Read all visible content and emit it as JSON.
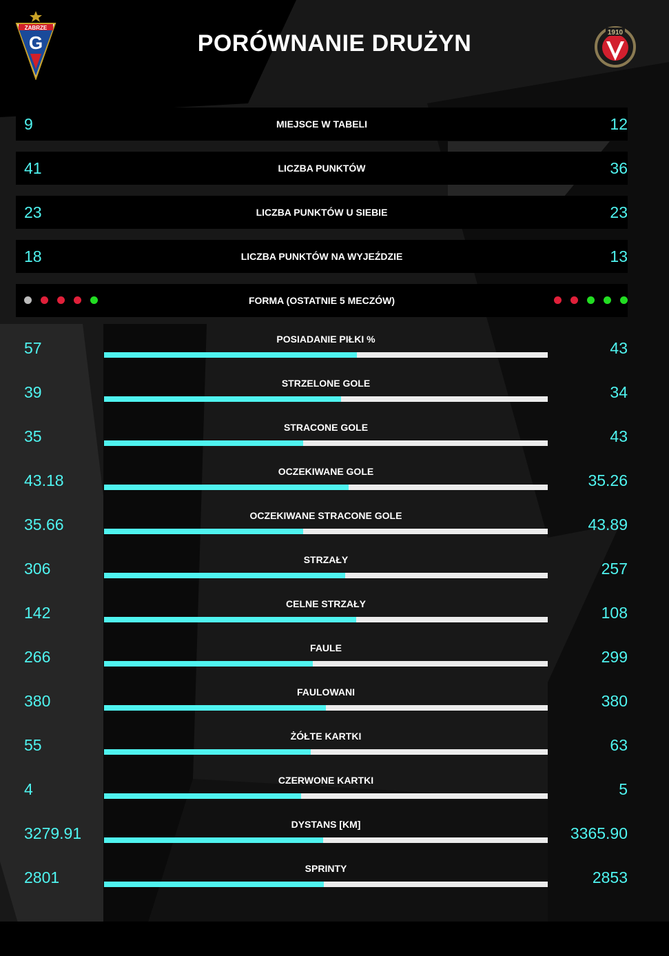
{
  "title": "PORÓWNANIE DRUŻYN",
  "colors": {
    "accent": "#4ff4f0",
    "bar_track": "#ececec",
    "row_bg": "#000000",
    "form_win": "#22dd22",
    "form_loss": "#e0203a",
    "form_draw": "#bbbbbb"
  },
  "logos": {
    "left": {
      "text": "ZABRZE",
      "icon": "gornik-zabrze-crest-icon"
    },
    "right": {
      "text": "1910",
      "icon": "widzew-lodz-crest-icon"
    }
  },
  "summary_rows": [
    {
      "label": "MIEJSCE W TABELI",
      "left": "9",
      "right": "12"
    },
    {
      "label": "LICZBA PUNKTÓW",
      "left": "41",
      "right": "36"
    },
    {
      "label": "LICZBA PUNKTÓW U SIEBIE",
      "left": "23",
      "right": "23"
    },
    {
      "label": "LICZBA PUNKTÓW NA WYJEŹDZIE",
      "left": "18",
      "right": "13"
    }
  ],
  "form": {
    "label": "FORMA (OSTATNIE 5 MECZÓW)",
    "left": [
      "draw",
      "loss",
      "loss",
      "loss",
      "win"
    ],
    "right": [
      "loss",
      "loss",
      "win",
      "win",
      "win"
    ]
  },
  "stats": [
    {
      "label": "POSIADANIE PIŁKI %",
      "left": "57",
      "right": "43",
      "share": 0.57
    },
    {
      "label": "STRZELONE GOLE",
      "left": "39",
      "right": "34",
      "share": 0.534
    },
    {
      "label": "STRACONE GOLE",
      "left": "35",
      "right": "43",
      "share": 0.449
    },
    {
      "label": "OCZEKIWANE GOLE",
      "left": "43.18",
      "right": "35.26",
      "share": 0.551
    },
    {
      "label": "OCZEKIWANE STRACONE GOLE",
      "left": "35.66",
      "right": "43.89",
      "share": 0.448
    },
    {
      "label": "STRZAŁY",
      "left": "306",
      "right": "257",
      "share": 0.544
    },
    {
      "label": "CELNE STRZAŁY",
      "left": "142",
      "right": "108",
      "share": 0.568
    },
    {
      "label": "FAULE",
      "left": "266",
      "right": "299",
      "share": 0.471
    },
    {
      "label": "FAULOWANI",
      "left": "380",
      "right": "380",
      "share": 0.5
    },
    {
      "label": "ŻÓŁTE KARTKI",
      "left": "55",
      "right": "63",
      "share": 0.466
    },
    {
      "label": "CZERWONE KARTKI",
      "left": "4",
      "right": "5",
      "share": 0.444
    },
    {
      "label": "DYSTANS [KM]",
      "left": "3279.91",
      "right": "3365.90",
      "share": 0.494
    },
    {
      "label": "SPRINTY",
      "left": "2801",
      "right": "2853",
      "share": 0.495
    }
  ]
}
